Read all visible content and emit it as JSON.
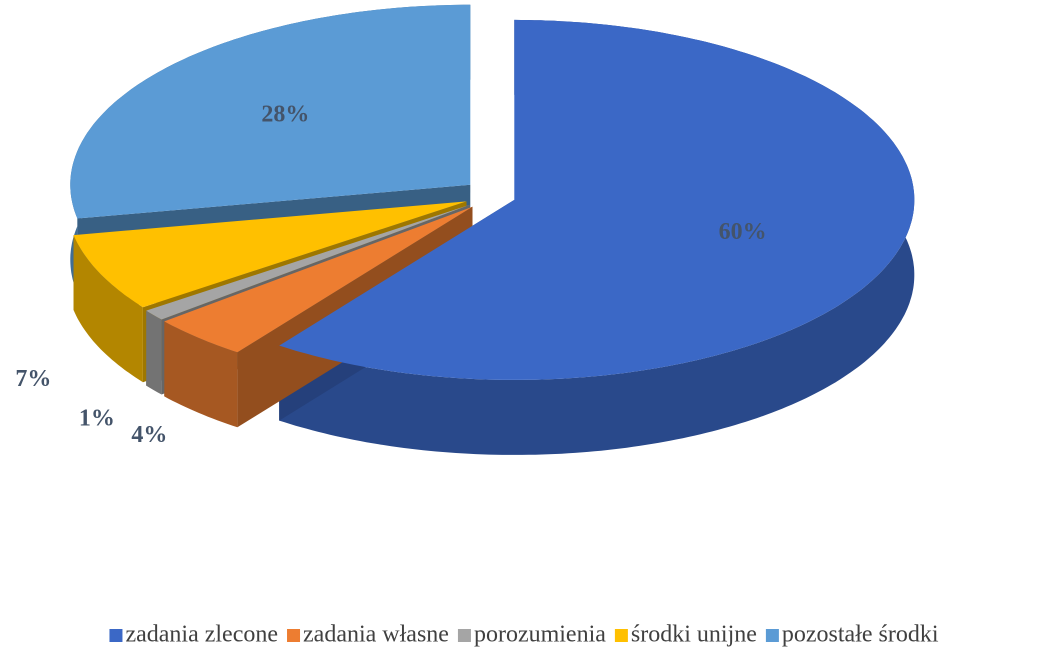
{
  "chart_data": {
    "type": "pie3d",
    "categories": [
      "zadania zlecone",
      "zadania własne",
      "porozumienia",
      "środki unijne",
      "pozostałe środki"
    ],
    "values": [
      60,
      4,
      1,
      7,
      28
    ],
    "value_labels": [
      "60%",
      "4%",
      "1%",
      "7%",
      "28%"
    ],
    "colors": [
      "#3b68c6",
      "#ed7d31",
      "#a5a5a5",
      "#ffc000",
      "#5b9bd5"
    ],
    "legend": "bottom"
  }
}
